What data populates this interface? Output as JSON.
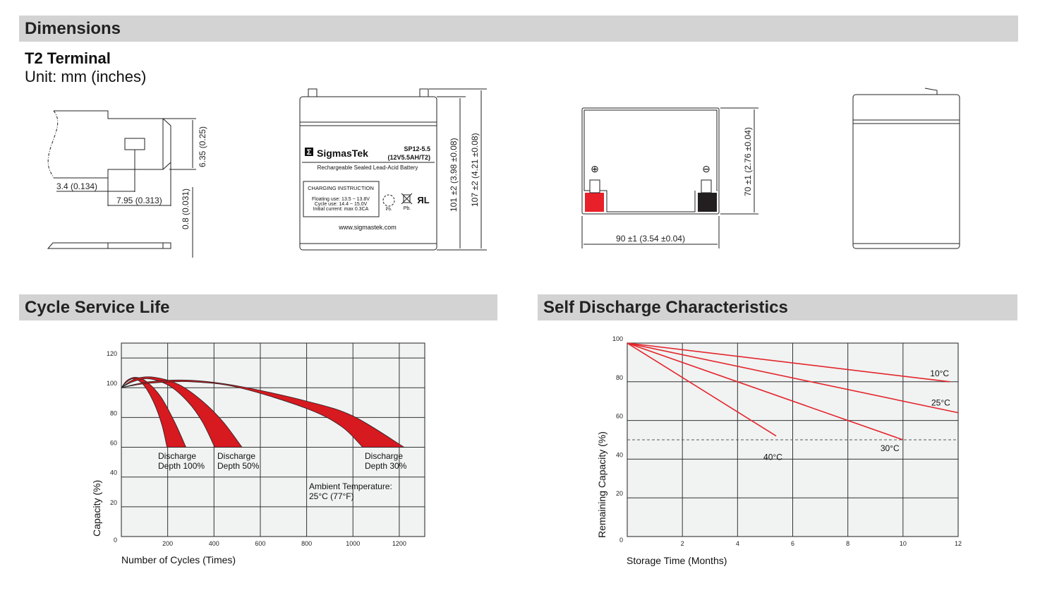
{
  "sections": {
    "dimensions": "Dimensions",
    "cycle": "Cycle Service Life",
    "self_discharge": "Self Discharge Characteristics"
  },
  "dimensions": {
    "terminal": "T2 Terminal",
    "unit": "Unit: mm (inches)",
    "terminal_dims": {
      "height": "6.35 (0.25)",
      "offset": "3.4 (0.134)",
      "width": "7.95 (0.313)",
      "thickness": "0.8 (0.031)"
    },
    "front_dims": {
      "h1": "101 ±2 (3.98 ±0.08)",
      "h2": "107 ±2 (4.21 ±0.08)"
    },
    "top_dims": {
      "depth": "70 ±1 (2.76 ±0.04)",
      "length": "90 ±1 (3.54 ±0.04)"
    },
    "label": {
      "brand": "SigmasTek",
      "brand_mark": "Σ",
      "model": "SP12-5.5",
      "spec": "(12V5.5AH/T2)",
      "description": "Rechargeable Sealed Lead-Acid Battery",
      "charging_title": "CHARGING INSTRUCTION",
      "floating": "Floating use: 13.5 ~ 13.8V",
      "cycle": "Cycle use: 14.4 ~ 15.0V",
      "initial": "Initial current: max 0.3CA",
      "pb1": "Pb.",
      "pb2": "Pb.",
      "website": "www.sigmastek.com"
    },
    "terminal_symbols": {
      "positive": "⊕",
      "negative": "⊖"
    },
    "colors": {
      "positive": "#e8202a",
      "negative": "#231f20"
    }
  },
  "chart_data": [
    {
      "type": "area",
      "title": "Cycle Service Life",
      "xlabel": "Number of Cycles (Times)",
      "ylabel": "Capacity (%)",
      "xlim": [
        0,
        1310
      ],
      "ylim": [
        0,
        130
      ],
      "xticks": [
        200,
        400,
        600,
        800,
        1000,
        1200
      ],
      "yticks": [
        0,
        20,
        40,
        60,
        80,
        100,
        120
      ],
      "grid": true,
      "color": "#d71920",
      "series": [
        {
          "name": "Discharge Depth 100%",
          "outer": [
            [
              0,
              100
            ],
            [
              25,
              105
            ],
            [
              64,
              107
            ],
            [
              110,
              104
            ],
            [
              170,
              94
            ],
            [
              230,
              77
            ],
            [
              279,
              60
            ]
          ],
          "inner": [
            [
              0,
              100
            ],
            [
              25,
              104
            ],
            [
              55,
              106
            ],
            [
              95,
              102
            ],
            [
              140,
              90
            ],
            [
              175,
              75
            ],
            [
              197,
              60
            ]
          ]
        },
        {
          "name": "Discharge Depth 50%",
          "outer": [
            [
              0,
              100
            ],
            [
              60,
              106
            ],
            [
              145,
              107
            ],
            [
              250,
              102
            ],
            [
              350,
              91
            ],
            [
              440,
              77
            ],
            [
              521,
              60
            ]
          ],
          "inner": [
            [
              0,
              100
            ],
            [
              50,
              104
            ],
            [
              120,
              106
            ],
            [
              210,
              101
            ],
            [
              290,
              90
            ],
            [
              350,
              77
            ],
            [
              403,
              60
            ]
          ]
        },
        {
          "name": "Discharge Depth 30%",
          "outer": [
            [
              0,
              100
            ],
            [
              120,
              104
            ],
            [
              300,
              105
            ],
            [
              509,
              101
            ],
            [
              800,
              91
            ],
            [
              1000,
              81
            ],
            [
              1221,
              60
            ]
          ],
          "inner": [
            [
              0,
              100
            ],
            [
              120,
              103
            ],
            [
              300,
              104
            ],
            [
              509,
              100
            ],
            [
              800,
              86
            ],
            [
              950,
              74
            ],
            [
              1042,
              60
            ]
          ]
        }
      ],
      "annotations": [
        "Ambient Temperature:",
        "25°C (77°F)"
      ]
    },
    {
      "type": "line",
      "title": "Self Discharge Characteristics",
      "xlabel": "Storage Time (Months)",
      "ylabel": "Remaining Capacity (%)",
      "xlim": [
        0,
        12
      ],
      "ylim": [
        0,
        100
      ],
      "xticks": [
        2,
        4,
        6,
        8,
        10,
        12
      ],
      "yticks": [
        0,
        20,
        40,
        60,
        80,
        100
      ],
      "grid": true,
      "reference_line": 50,
      "color": "#e3262c",
      "series": [
        {
          "name": "10°C",
          "x": [
            0,
            11.7
          ],
          "y": [
            100,
            80
          ]
        },
        {
          "name": "25°C",
          "x": [
            0,
            12
          ],
          "y": [
            100,
            64
          ]
        },
        {
          "name": "30°C",
          "x": [
            0,
            10
          ],
          "y": [
            100,
            50
          ]
        },
        {
          "name": "40°C",
          "x": [
            0,
            5.4
          ],
          "y": [
            100,
            52
          ]
        }
      ]
    }
  ]
}
